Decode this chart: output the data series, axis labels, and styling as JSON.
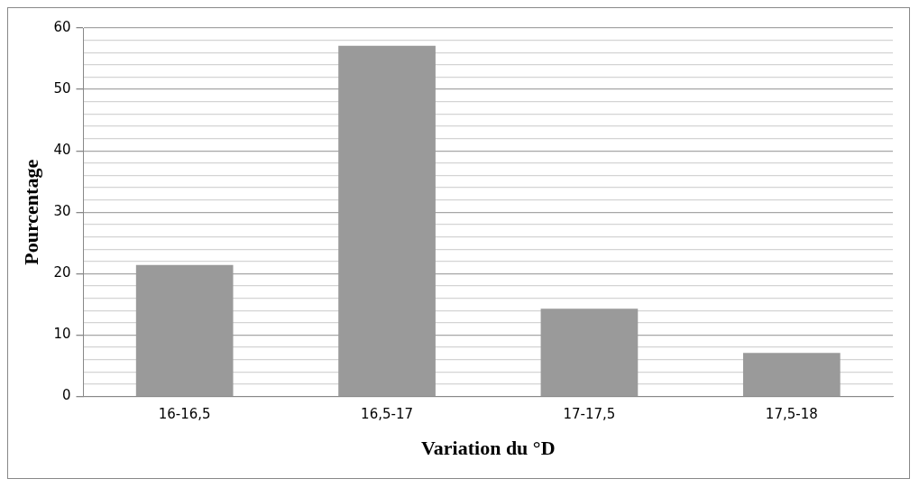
{
  "chart_data": {
    "type": "bar",
    "xlabel": "Variation du °D",
    "ylabel": "Pourcentage",
    "categories": [
      "16-16,5",
      "16,5-17",
      "17-17,5",
      "17,5-18"
    ],
    "values": [
      21.4,
      57.1,
      14.3,
      7.1
    ],
    "color": "#9a9a9a",
    "ylim": [
      0,
      60
    ],
    "yticks": [
      0,
      {
        "value": 2,
        "label": null
      },
      {
        "value": 4,
        "label": null
      },
      {
        "value": 6,
        "label": null
      },
      {
        "value": 8,
        "label": null
      },
      10,
      {
        "value": 12,
        "label": null
      },
      {
        "value": 14,
        "label": null
      },
      {
        "value": 16,
        "label": null
      },
      {
        "value": 18,
        "label": null
      },
      20,
      {
        "value": 22,
        "label": null
      },
      {
        "value": 24,
        "label": null
      },
      {
        "value": 26,
        "label": null
      },
      {
        "value": 28,
        "label": null
      },
      30,
      {
        "value": 32,
        "label": null
      },
      {
        "value": 34,
        "label": null
      },
      {
        "value": 36,
        "label": null
      },
      {
        "value": 38,
        "label": null
      },
      40,
      {
        "value": 42,
        "label": null
      },
      {
        "value": 44,
        "label": null
      },
      {
        "value": 46,
        "label": null
      },
      {
        "value": 48,
        "label": null
      },
      50,
      {
        "value": 52,
        "label": null
      },
      {
        "value": 54,
        "label": null
      },
      {
        "value": 56,
        "label": null
      },
      {
        "value": 58,
        "label": null
      },
      60
    ],
    "grid": "y",
    "legend": false
  }
}
